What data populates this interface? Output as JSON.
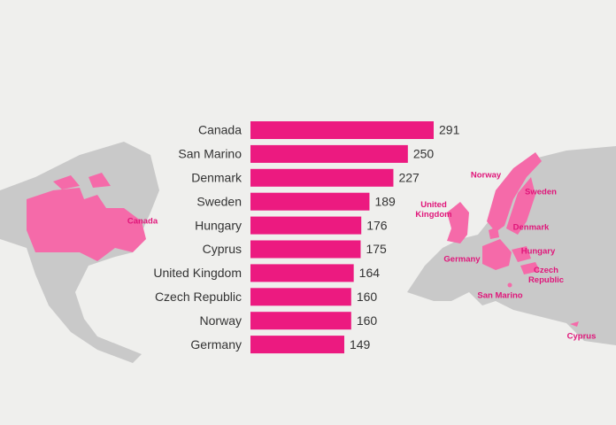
{
  "chart_data": {
    "type": "bar",
    "orientation": "horizontal",
    "categories": [
      "Canada",
      "San Marino",
      "Denmark",
      "Sweden",
      "Hungary",
      "Cyprus",
      "United Kingdom",
      "Czech Republic",
      "Norway",
      "Germany"
    ],
    "values": [
      291,
      250,
      227,
      189,
      176,
      175,
      164,
      160,
      160,
      149
    ],
    "color": "#ec1a80",
    "annotations": [
      "Canada",
      "Norway",
      "Sweden",
      "United Kingdom",
      "Denmark",
      "Hungary",
      "Germany",
      "Czech Republic",
      "San Marino",
      "Cyprus"
    ]
  }
}
